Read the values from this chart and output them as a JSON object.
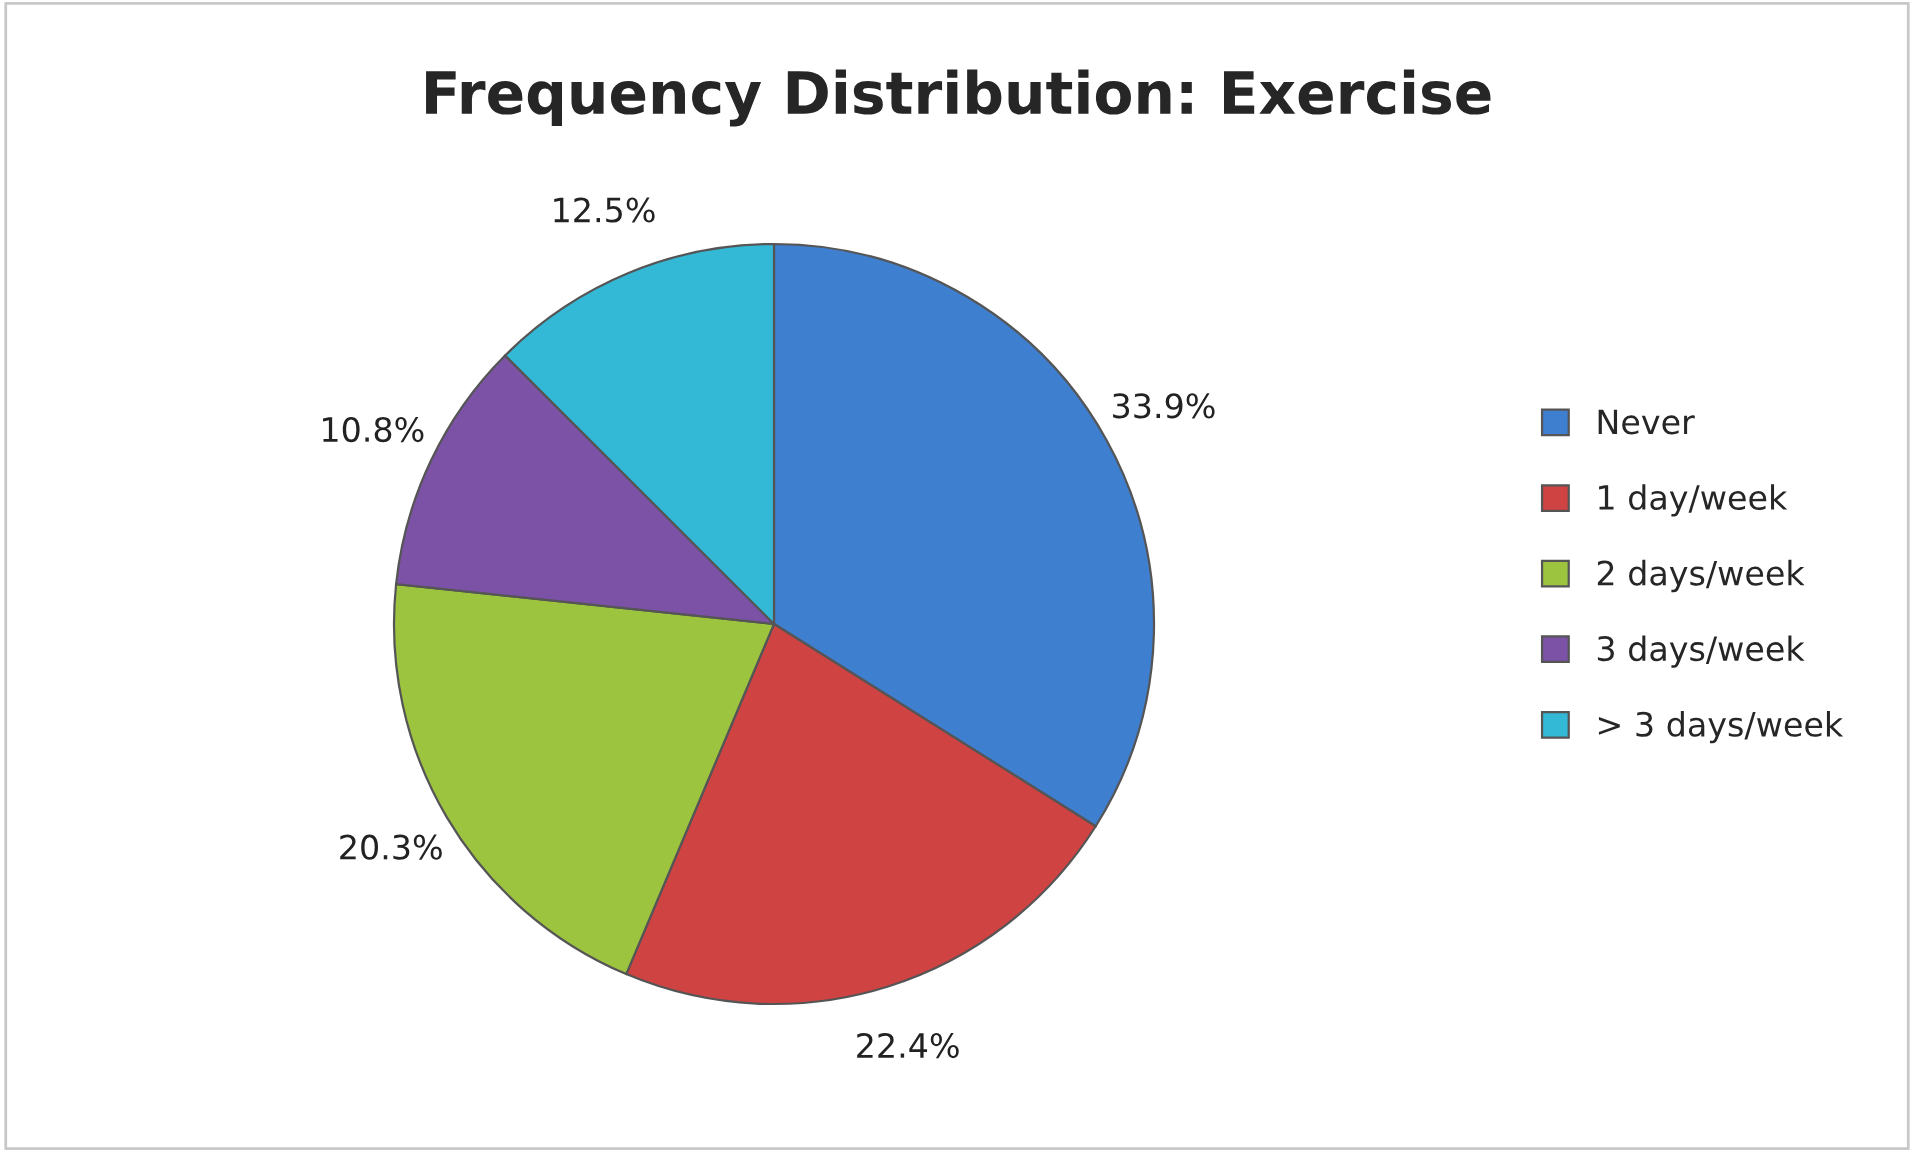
{
  "chart_data": {
    "type": "pie",
    "title": "Frequency Distribution: Exercise",
    "categories": [
      "Never",
      "1 day/week",
      "2 days/week",
      "3 days/week",
      "> 3 days/week"
    ],
    "values": [
      33.9,
      22.4,
      20.3,
      10.8,
      12.5
    ],
    "colors": [
      "#3f7fd0",
      "#d04343",
      "#9cc43f",
      "#7b52a5",
      "#33b8d6"
    ],
    "value_labels": [
      "33.9%",
      "22.4%",
      "20.3%",
      "10.8%",
      "12.5%"
    ],
    "legend": "right"
  }
}
